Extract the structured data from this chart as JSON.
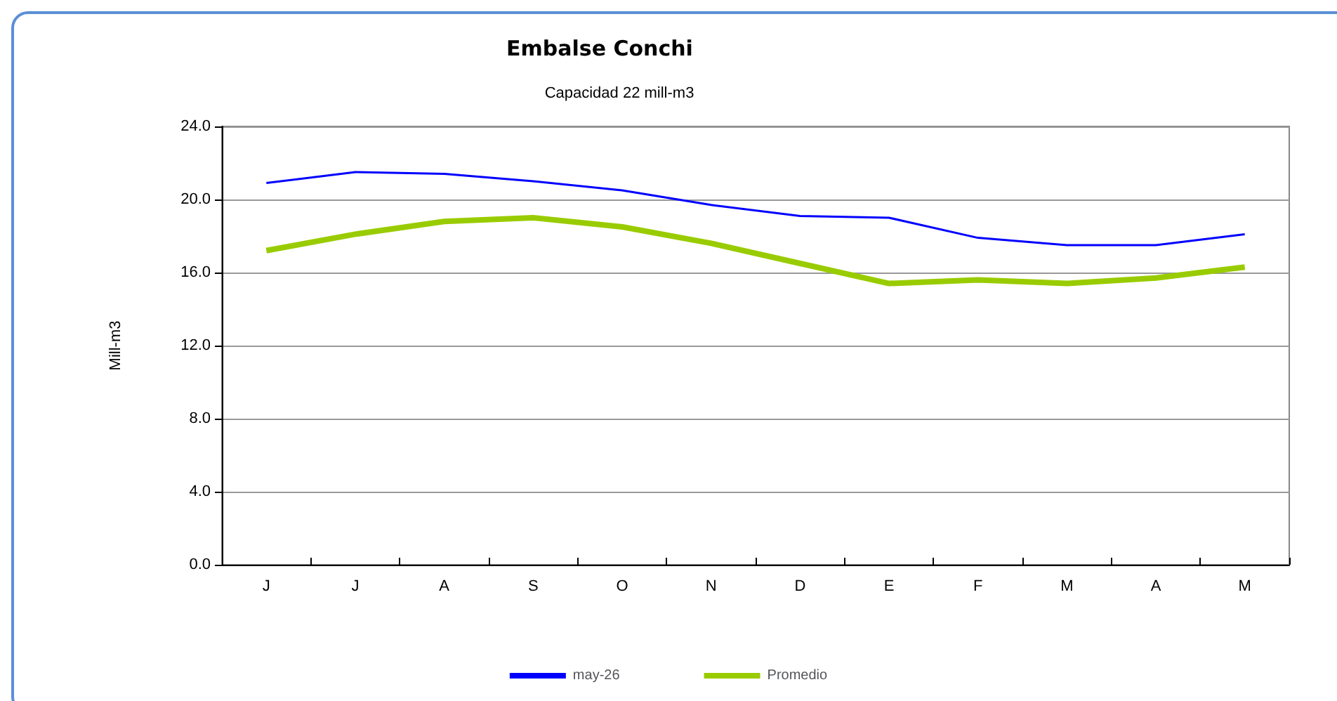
{
  "chart_data": {
    "type": "line",
    "title": "Embalse Conchi",
    "subtitle": "Capacidad 22 mill-m3",
    "ylabel": "Mill-m3",
    "categories": [
      "J",
      "J",
      "A",
      "S",
      "O",
      "N",
      "D",
      "E",
      "F",
      "M",
      "A",
      "M"
    ],
    "series": [
      {
        "name": "may-26",
        "color": "#0000ff",
        "values": [
          20.9,
          21.5,
          21.4,
          21.0,
          20.5,
          19.7,
          19.1,
          19.0,
          17.9,
          17.5,
          17.5,
          18.1
        ]
      },
      {
        "name": "Promedio",
        "color": "#99cc00",
        "values": [
          17.2,
          18.1,
          18.8,
          19.0,
          18.5,
          17.6,
          16.5,
          15.4,
          15.6,
          15.4,
          15.7,
          16.3
        ]
      }
    ],
    "ylim": [
      0,
      24
    ],
    "yticks": [
      {
        "value": 0,
        "label": "0.0"
      },
      {
        "value": 4,
        "label": "4.0"
      },
      {
        "value": 8,
        "label": "8.0"
      },
      {
        "value": 12,
        "label": "12.0"
      },
      {
        "value": 16,
        "label": "16.0"
      },
      {
        "value": 20,
        "label": "20.0"
      },
      {
        "value": 24,
        "label": "24.0"
      }
    ],
    "grid": "y",
    "legend": "bottom",
    "marker": "none"
  }
}
